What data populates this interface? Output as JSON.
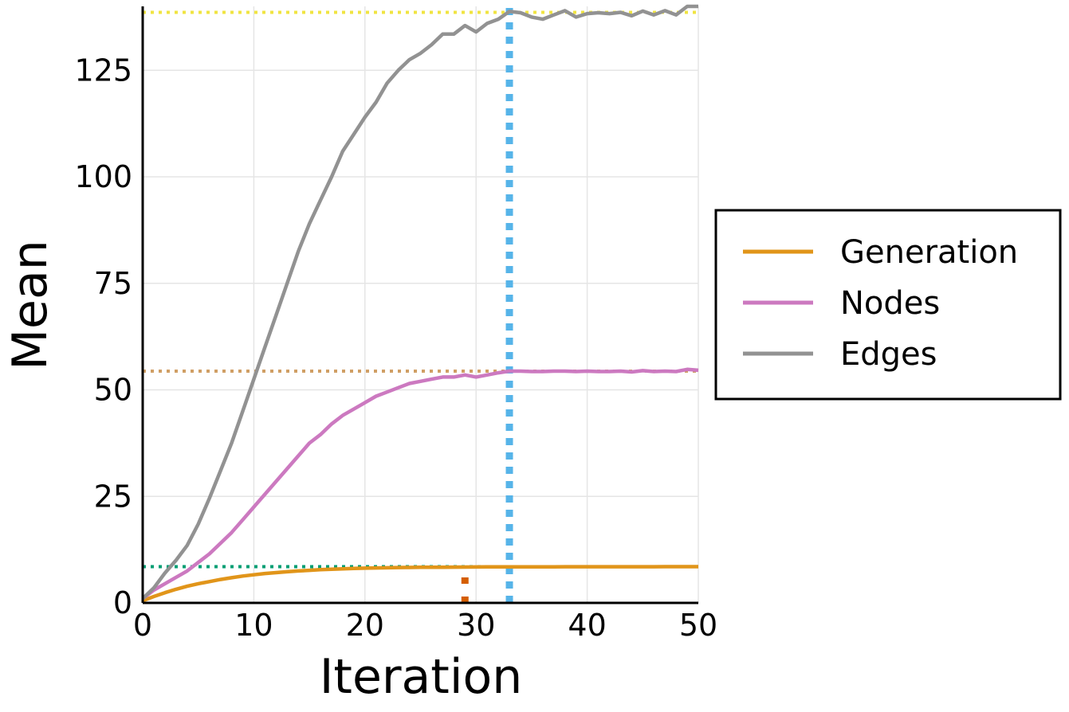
{
  "chart_data": {
    "type": "line",
    "title": "",
    "xlabel": "Iteration",
    "ylabel": "Mean",
    "xlim": [
      0,
      50
    ],
    "ylim": [
      0,
      140
    ],
    "x_ticks": [
      "0",
      "10",
      "20",
      "30",
      "40",
      "50"
    ],
    "y_ticks": [
      "0",
      "25",
      "50",
      "75",
      "100",
      "125"
    ],
    "grid": true,
    "legend_position": "right",
    "x": [
      0,
      1,
      2,
      3,
      4,
      5,
      6,
      7,
      8,
      9,
      10,
      11,
      12,
      13,
      14,
      15,
      16,
      17,
      18,
      19,
      20,
      21,
      22,
      23,
      24,
      25,
      26,
      27,
      28,
      29,
      30,
      31,
      32,
      33,
      34,
      35,
      36,
      37,
      38,
      39,
      40,
      41,
      42,
      43,
      44,
      45,
      46,
      47,
      48,
      49,
      50
    ],
    "series": [
      {
        "name": "Generation",
        "color": "#E1951A",
        "values": [
          0.5,
          1.5,
          2.4,
          3.2,
          3.9,
          4.5,
          5.0,
          5.5,
          5.9,
          6.3,
          6.6,
          6.9,
          7.1,
          7.3,
          7.5,
          7.65,
          7.8,
          7.9,
          8.0,
          8.1,
          8.15,
          8.2,
          8.25,
          8.3,
          8.32,
          8.35,
          8.37,
          8.38,
          8.4,
          8.42,
          8.43,
          8.44,
          8.45,
          8.46,
          8.46,
          8.47,
          8.47,
          8.47,
          8.48,
          8.48,
          8.48,
          8.48,
          8.49,
          8.49,
          8.49,
          8.49,
          8.49,
          8.5,
          8.5,
          8.5,
          8.5
        ]
      },
      {
        "name": "Nodes",
        "color": "#CC79C0",
        "values": [
          1.0,
          3.0,
          4.5,
          6.0,
          7.5,
          9.5,
          11.5,
          14.0,
          16.5,
          19.5,
          22.5,
          25.5,
          28.5,
          31.5,
          34.5,
          37.5,
          39.5,
          42.0,
          44.0,
          45.5,
          47.0,
          48.5,
          49.5,
          50.5,
          51.5,
          52.0,
          52.5,
          53.0,
          53.0,
          53.5,
          53.0,
          53.5,
          54.0,
          54.4,
          54.4,
          54.3,
          54.3,
          54.4,
          54.4,
          54.3,
          54.4,
          54.3,
          54.3,
          54.4,
          54.2,
          54.5,
          54.3,
          54.4,
          54.3,
          54.8,
          54.6
        ]
      },
      {
        "name": "Edges",
        "color": "#929292",
        "values": [
          1.0,
          3.5,
          7.0,
          10.0,
          13.5,
          18.5,
          24.5,
          31.0,
          37.5,
          45.0,
          52.5,
          60.0,
          67.5,
          75.0,
          82.5,
          89.0,
          94.5,
          100.0,
          106.0,
          110.0,
          114.0,
          117.5,
          122.0,
          125.0,
          127.5,
          129.0,
          131.0,
          133.5,
          133.5,
          135.5,
          134.0,
          136.0,
          137.0,
          138.8,
          138.5,
          137.5,
          137.0,
          138.0,
          139.0,
          137.5,
          138.3,
          138.5,
          138.3,
          138.6,
          137.8,
          138.9,
          138.0,
          139.0,
          138.0,
          140.0,
          140.0
        ]
      }
    ],
    "reference_lines": [
      {
        "orientation": "horizontal",
        "value": 138.6,
        "color": "#F0E442",
        "style": "dotted"
      },
      {
        "orientation": "horizontal",
        "value": 54.4,
        "color": "#D09F65",
        "style": "dotted"
      },
      {
        "orientation": "horizontal",
        "value": 8.5,
        "color": "#009E73",
        "style": "dotted"
      },
      {
        "orientation": "vertical",
        "value": 33,
        "color": "#56B4E9",
        "style": "dotted"
      },
      {
        "orientation": "vertical",
        "value": 29,
        "range": [
          0,
          6
        ],
        "color": "#D55E00",
        "style": "dotted"
      }
    ]
  }
}
